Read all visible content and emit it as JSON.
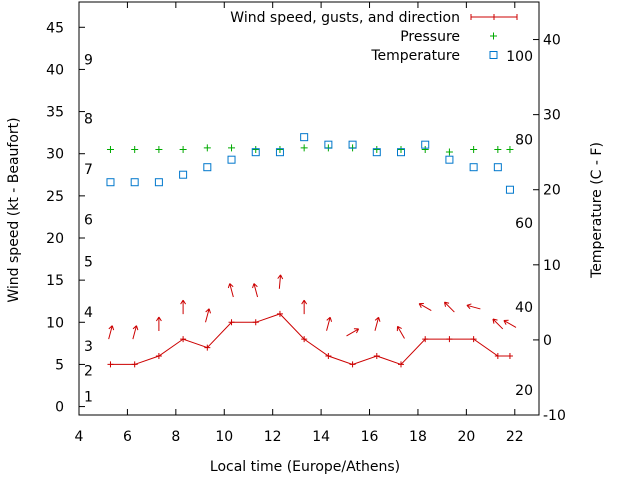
{
  "chart_data": {
    "type": "line",
    "xlabel": "Local time (Europe/Athens)",
    "ylabel_left": "Wind speed (kt - Beaufort)",
    "ylabel_right": "Temperature (C - F)",
    "xlim": [
      4,
      23
    ],
    "x_ticks": [
      4,
      6,
      8,
      10,
      12,
      14,
      16,
      18,
      20,
      22
    ],
    "ylim_left": [
      -1,
      48
    ],
    "y_ticks_left": [
      0,
      5,
      10,
      15,
      20,
      25,
      30,
      35,
      40,
      45
    ],
    "ylim_right": [
      -10,
      45
    ],
    "y_ticks_right": [
      -10,
      0,
      10,
      20,
      30,
      40
    ],
    "beaufort_labels": [
      {
        "label": "1",
        "kt": 1.2
      },
      {
        "label": "2",
        "kt": 4.3
      },
      {
        "label": "3",
        "kt": 7.2
      },
      {
        "label": "4",
        "kt": 11.2
      },
      {
        "label": "5",
        "kt": 17.2
      },
      {
        "label": "6",
        "kt": 22.2
      },
      {
        "label": "7",
        "kt": 28.2
      },
      {
        "label": "8",
        "kt": 34.2
      },
      {
        "label": "9",
        "kt": 41.2
      }
    ],
    "fahrenheit_labels": [
      {
        "label": "20",
        "c": -6.7
      },
      {
        "label": "40",
        "c": 4.4
      },
      {
        "label": "60",
        "c": 15.6
      },
      {
        "label": "80",
        "c": 26.7
      },
      {
        "label": "100",
        "c": 37.8
      }
    ],
    "legend": [
      "Wind speed, gusts, and direction",
      "Pressure",
      "Temperature"
    ],
    "colors": {
      "wind": "#cc0000",
      "pressure": "#00aa00",
      "temperature": "#0077cc"
    },
    "series": [
      {
        "name": "Wind speed, gusts, and direction",
        "axis": "left",
        "x": [
          5.3,
          6.3,
          7.3,
          8.3,
          9.3,
          10.3,
          11.3,
          12.3,
          13.3,
          14.3,
          15.3,
          16.3,
          17.3,
          18.3,
          19.3,
          20.3,
          21.3,
          21.8
        ],
        "values": [
          5,
          5,
          6,
          8,
          7,
          10,
          10,
          11,
          8,
          6,
          5,
          6,
          5,
          8,
          8,
          8,
          6,
          6
        ],
        "direction_deg": [
          15,
          15,
          0,
          0,
          15,
          345,
          345,
          5,
          0,
          15,
          60,
          15,
          330,
          300,
          315,
          285,
          315,
          300
        ]
      },
      {
        "name": "Pressure",
        "axis": "left",
        "x": [
          5.3,
          6.3,
          7.3,
          8.3,
          9.3,
          10.3,
          11.3,
          12.3,
          13.3,
          14.3,
          15.3,
          16.3,
          17.3,
          18.3,
          19.3,
          20.3,
          21.3,
          21.8
        ],
        "values": [
          30.5,
          30.5,
          30.5,
          30.5,
          30.7,
          30.7,
          30.5,
          30.5,
          30.7,
          30.7,
          30.7,
          30.5,
          30.5,
          30.5,
          30.2,
          30.5,
          30.5,
          30.5
        ]
      },
      {
        "name": "Temperature",
        "axis": "right",
        "x": [
          5.3,
          6.3,
          7.3,
          8.3,
          9.3,
          10.3,
          11.3,
          12.3,
          13.3,
          14.3,
          15.3,
          16.3,
          17.3,
          18.3,
          19.3,
          20.3,
          21.3,
          21.8
        ],
        "values": [
          21,
          21,
          21,
          22,
          23,
          24,
          25,
          25,
          27,
          26,
          26,
          25,
          25,
          26,
          24,
          23,
          23,
          20
        ]
      }
    ]
  }
}
